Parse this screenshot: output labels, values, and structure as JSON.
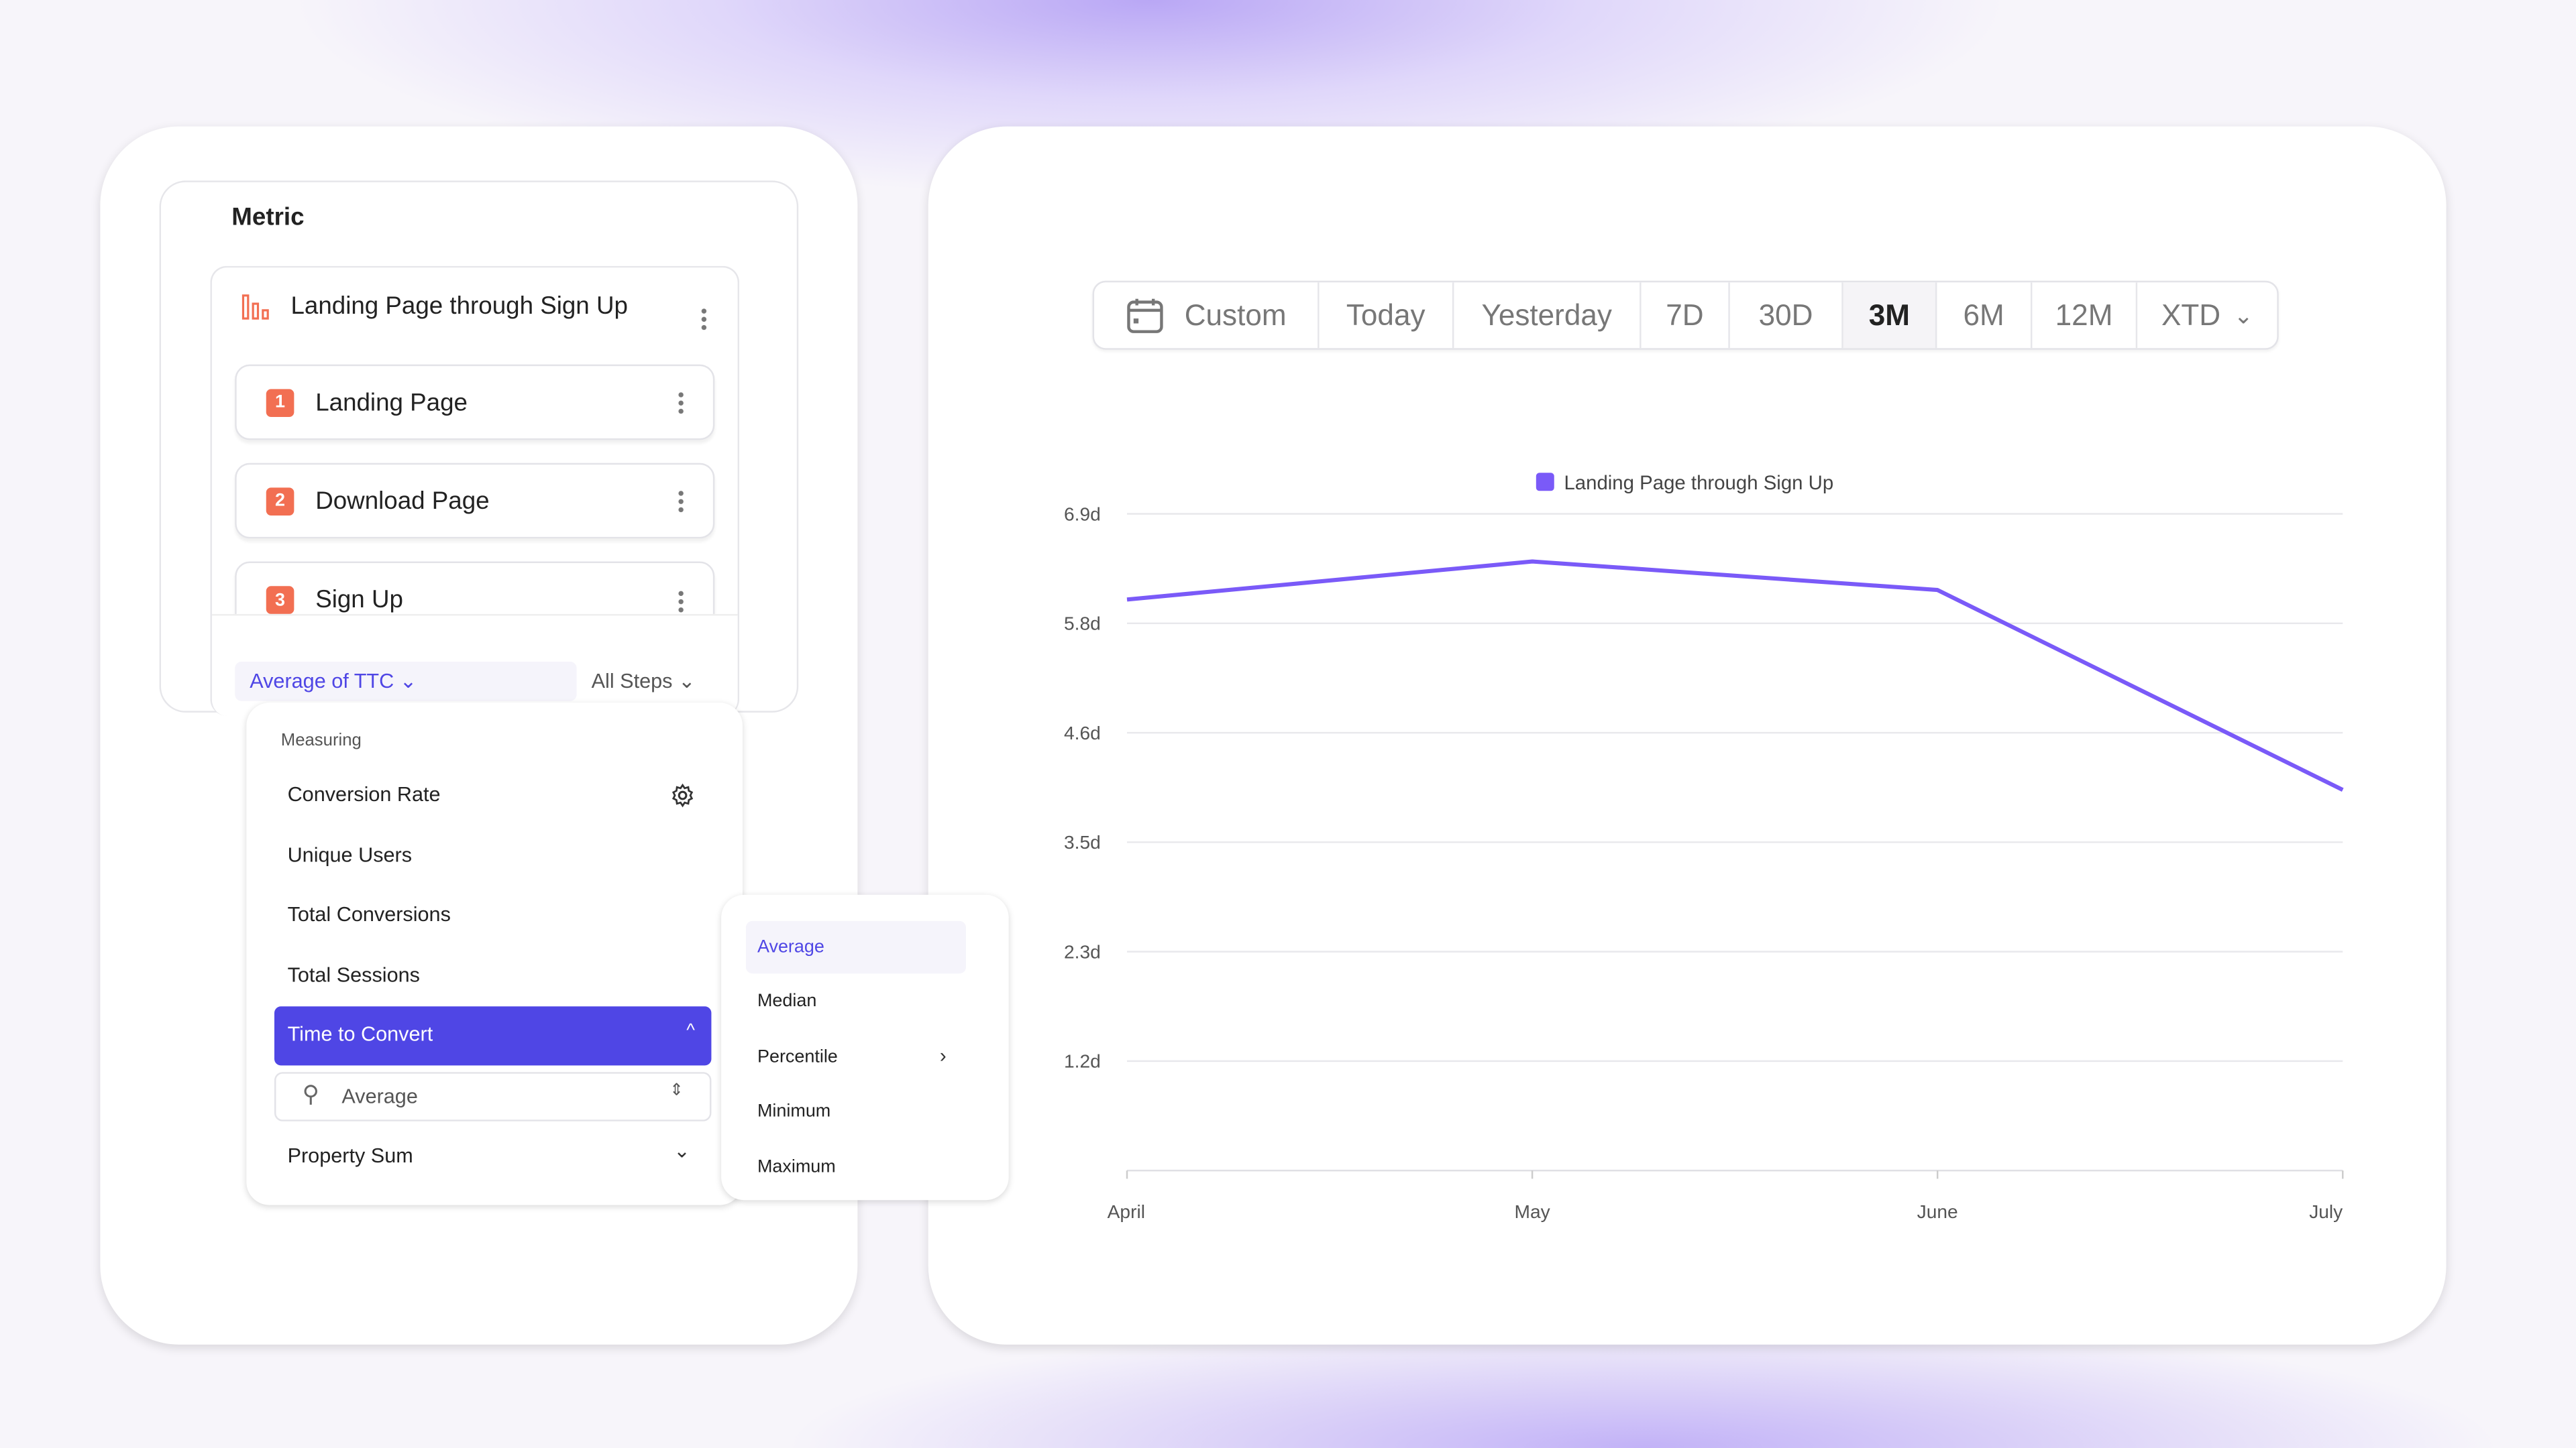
{
  "metric_panel": {
    "title": "Metric",
    "funnel_name": "Landing Page through Sign Up",
    "steps": [
      {
        "num": "1",
        "label": "Landing Page"
      },
      {
        "num": "2",
        "label": "Download Page"
      },
      {
        "num": "3",
        "label": "Sign Up"
      }
    ],
    "measure_selector": "Average of TTC",
    "steps_selector": "All Steps"
  },
  "measuring_menu": {
    "heading": "Measuring",
    "items": [
      "Conversion Rate",
      "Unique Users",
      "Total Conversions",
      "Total Sessions",
      "Time to Convert",
      "Property Sum"
    ],
    "selected": "Time to Convert",
    "aggregation_select": "Average"
  },
  "aggregation_menu": {
    "items": [
      "Average",
      "Median",
      "Percentile",
      "Minimum",
      "Maximum"
    ],
    "selected": "Average"
  },
  "date_range": {
    "options": [
      "Custom",
      "Today",
      "Yesterday",
      "7D",
      "30D",
      "3M",
      "6M",
      "12M",
      "XTD"
    ],
    "selected": "3M"
  },
  "colors": {
    "accent": "#4f46e5",
    "series": "#7a5af8",
    "badge": "#f26f52"
  },
  "chart_data": {
    "type": "line",
    "legend": [
      "Landing Page through Sign Up"
    ],
    "legend_position": "top-center",
    "x": [
      "April",
      "May",
      "June",
      "July"
    ],
    "series": [
      {
        "name": "Landing Page through Sign Up",
        "values": [
          6.0,
          6.4,
          6.1,
          4.0
        ]
      }
    ],
    "y_ticks": [
      "1.2d",
      "2.3d",
      "3.5d",
      "4.6d",
      "5.8d",
      "6.9d"
    ],
    "y_tick_values": [
      1.15,
      2.3,
      3.45,
      4.6,
      5.75,
      6.9
    ],
    "ylim": [
      0,
      6.9
    ],
    "grid": true
  }
}
